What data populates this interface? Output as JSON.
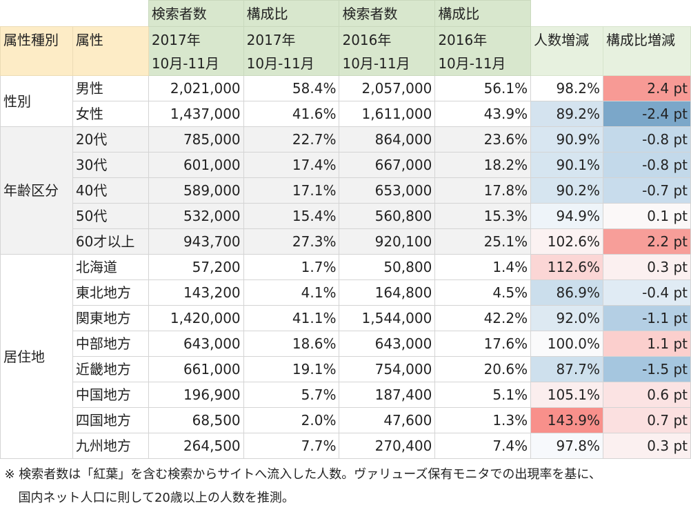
{
  "chart_data": {
    "type": "table",
    "header_groups": [
      "検索者数",
      "構成比",
      "検索者数",
      "構成比"
    ],
    "columns": [
      {
        "key": "category",
        "line1": "",
        "line2": "属性種別"
      },
      {
        "key": "attribute",
        "line1": "",
        "line2": "属性"
      },
      {
        "key": "searchers_2017",
        "line1": "2017年",
        "line2": "10月-11月"
      },
      {
        "key": "share_2017",
        "line1": "2017年",
        "line2": "10月-11月"
      },
      {
        "key": "searchers_2016",
        "line1": "2016年",
        "line2": "10月-11月"
      },
      {
        "key": "share_2016",
        "line1": "2016年",
        "line2": "10月-11月"
      },
      {
        "key": "count_change",
        "line1": "",
        "line2": "人数増減"
      },
      {
        "key": "share_change",
        "line1": "",
        "line2": "構成比増減"
      }
    ],
    "groups": [
      {
        "category": "性別",
        "shaded": false,
        "rows": [
          {
            "attribute": "男性",
            "searchers_2017": "2,021,000",
            "share_2017": "58.4%",
            "searchers_2016": "2,057,000",
            "share_2016": "56.1%",
            "count_change": "98.2%",
            "share_change": "2.4 pt",
            "count_change_color": "#ffffff",
            "share_change_color": "#f79a95"
          },
          {
            "attribute": "女性",
            "searchers_2017": "1,437,000",
            "share_2017": "41.6%",
            "searchers_2016": "1,611,000",
            "share_2016": "43.9%",
            "count_change": "89.2%",
            "share_change": "-2.4 pt",
            "count_change_color": "#d4e3ef",
            "share_change_color": "#7ba7c9"
          }
        ]
      },
      {
        "category": "年齢区分",
        "shaded": true,
        "rows": [
          {
            "attribute": "20代",
            "searchers_2017": "785,000",
            "share_2017": "22.7%",
            "searchers_2016": "864,000",
            "share_2016": "23.6%",
            "count_change": "90.9%",
            "share_change": "-0.8 pt",
            "count_change_color": "#d8e6f1",
            "share_change_color": "#c3d9ea"
          },
          {
            "attribute": "30代",
            "searchers_2017": "601,000",
            "share_2017": "17.4%",
            "searchers_2016": "667,000",
            "share_2016": "18.2%",
            "count_change": "90.1%",
            "share_change": "-0.8 pt",
            "count_change_color": "#d6e5f0",
            "share_change_color": "#c3d9ea"
          },
          {
            "attribute": "40代",
            "searchers_2017": "589,000",
            "share_2017": "17.1%",
            "searchers_2016": "653,000",
            "share_2016": "17.8%",
            "count_change": "90.2%",
            "share_change": "-0.7 pt",
            "count_change_color": "#d6e5f0",
            "share_change_color": "#c8dcec"
          },
          {
            "attribute": "50代",
            "searchers_2017": "532,000",
            "share_2017": "15.4%",
            "searchers_2016": "560,800",
            "share_2016": "15.3%",
            "count_change": "94.9%",
            "share_change": "0.1 pt",
            "count_change_color": "#eef4f9",
            "share_change_color": "#fbf8f8"
          },
          {
            "attribute": "60才以上",
            "searchers_2017": "943,700",
            "share_2017": "27.3%",
            "searchers_2016": "920,100",
            "share_2016": "25.1%",
            "count_change": "102.6%",
            "share_change": "2.2 pt",
            "count_change_color": "#fbf2f2",
            "share_change_color": "#f79e99"
          }
        ]
      },
      {
        "category": "居住地",
        "shaded": false,
        "rows": [
          {
            "attribute": "北海道",
            "searchers_2017": "57,200",
            "share_2017": "1.7%",
            "searchers_2016": "50,800",
            "share_2016": "1.4%",
            "count_change": "112.6%",
            "share_change": "0.3 pt",
            "count_change_color": "#fbd6d5",
            "share_change_color": "#fbf0f0"
          },
          {
            "attribute": "東北地方",
            "searchers_2017": "143,200",
            "share_2017": "4.1%",
            "searchers_2016": "164,800",
            "share_2016": "4.5%",
            "count_change": "86.9%",
            "share_change": "-0.4 pt",
            "count_change_color": "#cbdeec",
            "share_change_color": "#e0ebf4"
          },
          {
            "attribute": "関東地方",
            "searchers_2017": "1,420,000",
            "share_2017": "41.1%",
            "searchers_2016": "1,544,000",
            "share_2016": "42.2%",
            "count_change": "92.0%",
            "share_change": "-1.1 pt",
            "count_change_color": "#dde9f2",
            "share_change_color": "#b4cfe4"
          },
          {
            "attribute": "中部地方",
            "searchers_2017": "643,000",
            "share_2017": "18.6%",
            "searchers_2016": "643,000",
            "share_2016": "17.6%",
            "count_change": "100.0%",
            "share_change": "1.1 pt",
            "count_change_color": "#fafafb",
            "share_change_color": "#fbcfcd"
          },
          {
            "attribute": "近畿地方",
            "searchers_2017": "661,000",
            "share_2017": "19.1%",
            "searchers_2016": "754,000",
            "share_2016": "20.6%",
            "count_change": "87.7%",
            "share_change": "-1.5 pt",
            "count_change_color": "#cee0ed",
            "share_change_color": "#a5c6df"
          },
          {
            "attribute": "中国地方",
            "searchers_2017": "196,900",
            "share_2017": "5.7%",
            "searchers_2016": "187,400",
            "share_2016": "5.1%",
            "count_change": "105.1%",
            "share_change": "0.6 pt",
            "count_change_color": "#fbeeee",
            "share_change_color": "#fbe3e3"
          },
          {
            "attribute": "四国地方",
            "searchers_2017": "68,500",
            "share_2017": "2.0%",
            "searchers_2016": "47,600",
            "share_2016": "1.3%",
            "count_change": "143.9%",
            "share_change": "0.7 pt",
            "count_change_color": "#f8908b",
            "share_change_color": "#fbe0e0"
          },
          {
            "attribute": "九州地方",
            "searchers_2017": "264,500",
            "share_2017": "7.7%",
            "searchers_2016": "270,400",
            "share_2016": "7.4%",
            "count_change": "97.8%",
            "share_change": "0.3 pt",
            "count_change_color": "#f7f9fc",
            "share_change_color": "#fbf0f0"
          }
        ]
      }
    ]
  },
  "note": {
    "line1": "※ 検索者数は「紅葉」を含む検索からサイトへ流入した人数。ヴァリューズ保有モニタでの出現率を基に、",
    "line2": "国内ネット人口に則して20歳以上の人数を推測。"
  }
}
